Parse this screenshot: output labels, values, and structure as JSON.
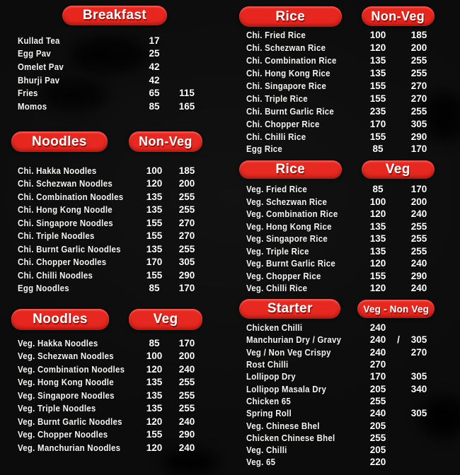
{
  "colors": {
    "background": "#0c0c0c",
    "badge_red": "#e7261e",
    "text": "#ffffff"
  },
  "sections": [
    {
      "key": "breakfast",
      "header": "Breakfast",
      "items": [
        {
          "name": "Kullad Tea",
          "p1": "17",
          "sep": "",
          "p2": ""
        },
        {
          "name": "Egg Pav",
          "p1": "25",
          "sep": "",
          "p2": ""
        },
        {
          "name": "Omelet Pav",
          "p1": "42",
          "sep": "",
          "p2": ""
        },
        {
          "name": "Bhurji Pav",
          "p1": "42",
          "sep": "",
          "p2": ""
        },
        {
          "name": "Fries",
          "p1": "65",
          "sep": "",
          "p2": "115"
        },
        {
          "name": "Momos",
          "p1": "85",
          "sep": "",
          "p2": "165"
        }
      ]
    },
    {
      "key": "noodles-nonveg",
      "header": "Noodles",
      "header2": "Non-Veg",
      "items": [
        {
          "name": "Chi. Hakka Noodles",
          "p1": "100",
          "sep": "",
          "p2": "185"
        },
        {
          "name": "Chi. Schezwan Noodles",
          "p1": "120",
          "sep": "",
          "p2": "200"
        },
        {
          "name": "Chi. Combination Noodles",
          "p1": "135",
          "sep": "",
          "p2": "255"
        },
        {
          "name": "Chi. Hong Kong Noodle",
          "p1": "135",
          "sep": "",
          "p2": "255"
        },
        {
          "name": "Chi. Singapore Noodles",
          "p1": "155",
          "sep": "",
          "p2": "270"
        },
        {
          "name": "Chi. Triple Noodles",
          "p1": "155",
          "sep": "",
          "p2": "270"
        },
        {
          "name": "Chi. Burnt Garlic Noodles",
          "p1": "135",
          "sep": "",
          "p2": "255"
        },
        {
          "name": "Chi. Chopper Noodles",
          "p1": "170",
          "sep": "",
          "p2": "305"
        },
        {
          "name": "Chi. Chilli Noodles",
          "p1": "155",
          "sep": "",
          "p2": "290"
        },
        {
          "name": "Egg Noodles",
          "p1": "85",
          "sep": "",
          "p2": "170"
        }
      ]
    },
    {
      "key": "noodles-veg",
      "header": "Noodles",
      "header2": "Veg",
      "items": [
        {
          "name": "Veg. Hakka Noodles",
          "p1": "85",
          "sep": "",
          "p2": "170"
        },
        {
          "name": "Veg. Schezwan Noodles",
          "p1": "100",
          "sep": "",
          "p2": "200"
        },
        {
          "name": "Veg. Combination Noodles",
          "p1": "120",
          "sep": "",
          "p2": "240"
        },
        {
          "name": "Veg. Hong Kong Noodle",
          "p1": "135",
          "sep": "",
          "p2": "255"
        },
        {
          "name": "Veg. Singapore Noodles",
          "p1": "135",
          "sep": "",
          "p2": "255"
        },
        {
          "name": "Veg. Triple Noodles",
          "p1": "135",
          "sep": "",
          "p2": "255"
        },
        {
          "name": "Veg. Burnt Garlic Noodles",
          "p1": "120",
          "sep": "",
          "p2": "240"
        },
        {
          "name": "Veg. Chopper Noodles",
          "p1": "155",
          "sep": "",
          "p2": "290"
        },
        {
          "name": "Veg. Manchurian Noodles",
          "p1": "120",
          "sep": "",
          "p2": "240"
        }
      ]
    },
    {
      "key": "rice-nonveg",
      "header": "Rice",
      "header2": "Non-Veg",
      "items": [
        {
          "name": "Chi. Fried Rice",
          "p1": "100",
          "sep": "",
          "p2": "185"
        },
        {
          "name": "Chi. Schezwan Rice",
          "p1": "120",
          "sep": "",
          "p2": "200"
        },
        {
          "name": "Chi. Combination Rice",
          "p1": "135",
          "sep": "",
          "p2": "255"
        },
        {
          "name": "Chi. Hong Kong Rice",
          "p1": "135",
          "sep": "",
          "p2": "255"
        },
        {
          "name": "Chi. Singapore Rice",
          "p1": "155",
          "sep": "",
          "p2": "270"
        },
        {
          "name": "Chi. Triple Rice",
          "p1": "155",
          "sep": "",
          "p2": "270"
        },
        {
          "name": "Chi. Burnt Garlic Rice",
          "p1": "235",
          "sep": "",
          "p2": "255"
        },
        {
          "name": "Chi. Chopper Rice",
          "p1": "170",
          "sep": "",
          "p2": "305"
        },
        {
          "name": "Chi. Chilli Rice",
          "p1": "155",
          "sep": "",
          "p2": "290"
        },
        {
          "name": "Egg Rice",
          "p1": "85",
          "sep": "",
          "p2": "170"
        }
      ]
    },
    {
      "key": "rice-veg",
      "header": "Rice",
      "header2": "Veg",
      "items": [
        {
          "name": "Veg. Fried Rice",
          "p1": "85",
          "sep": "",
          "p2": "170"
        },
        {
          "name": "Veg. Schezwan Rice",
          "p1": "100",
          "sep": "",
          "p2": "200"
        },
        {
          "name": "Veg. Combination Rice",
          "p1": "120",
          "sep": "",
          "p2": "240"
        },
        {
          "name": "Veg. Hong Kong Rice",
          "p1": "135",
          "sep": "",
          "p2": "255"
        },
        {
          "name": "Veg. Singapore Rice",
          "p1": "135",
          "sep": "",
          "p2": "255"
        },
        {
          "name": "Veg. Triple Rice",
          "p1": "135",
          "sep": "",
          "p2": "255"
        },
        {
          "name": "Veg. Burnt Garlic Rice",
          "p1": "120",
          "sep": "",
          "p2": "240"
        },
        {
          "name": "Veg. Chopper Rice",
          "p1": "155",
          "sep": "",
          "p2": "290"
        },
        {
          "name": "Veg. Chilli Rice",
          "p1": "120",
          "sep": "",
          "p2": "240"
        }
      ]
    },
    {
      "key": "starter",
      "header": "Starter",
      "header2": "Veg - Non Veg",
      "items": [
        {
          "name": "Chicken Chilli",
          "p1": "240",
          "sep": "",
          "p2": ""
        },
        {
          "name": "Manchurian Dry / Gravy",
          "p1": "240",
          "sep": "/",
          "p2": "305"
        },
        {
          "name": "Veg / Non Veg Crispy",
          "p1": "240",
          "sep": "",
          "p2": "270"
        },
        {
          "name": "Rost Chilli",
          "p1": "270",
          "sep": "",
          "p2": ""
        },
        {
          "name": "Lollipop Dry",
          "p1": "170",
          "sep": "",
          "p2": "305"
        },
        {
          "name": "Lollipop Masala Dry",
          "p1": "205",
          "sep": "",
          "p2": "340"
        },
        {
          "name": "Chicken 65",
          "p1": "255",
          "sep": "",
          "p2": ""
        },
        {
          "name": "Spring Roll",
          "p1": "240",
          "sep": "",
          "p2": "305"
        },
        {
          "name": "Veg. Chinese Bhel",
          "p1": "205",
          "sep": "",
          "p2": ""
        },
        {
          "name": "Chicken Chinese Bhel",
          "p1": "255",
          "sep": "",
          "p2": ""
        },
        {
          "name": "Veg. Chilli",
          "p1": "205",
          "sep": "",
          "p2": ""
        },
        {
          "name": "Veg. 65",
          "p1": "220",
          "sep": "",
          "p2": ""
        }
      ]
    }
  ]
}
